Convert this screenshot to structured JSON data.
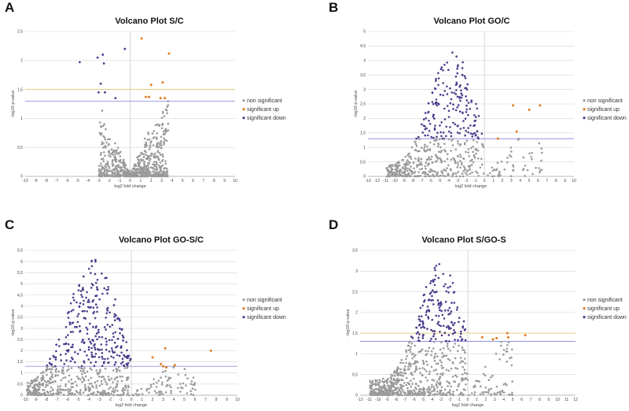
{
  "panel_letters": [
    "A",
    "B",
    "C",
    "D"
  ],
  "legend_colors": {
    "non_significant": "#9a9a9a",
    "significant_up": "#e07b20",
    "significant_down": "#4b3a8c"
  },
  "chart_data": [
    {
      "type": "scatter",
      "letter": "A",
      "title": "Volcano Plot S/C",
      "xlabel": "log2 fold change",
      "ylabel": "-log10 p-value",
      "xlim": [
        -10,
        10
      ],
      "ylim": [
        0,
        2.5
      ],
      "ystep": 0.5,
      "xticks": [
        "-10",
        "-9",
        "-8",
        "-7",
        "-6",
        "-5",
        "-4",
        "-3",
        "-2",
        "-1",
        "0",
        "1",
        "2",
        "3",
        "4",
        "5",
        "6",
        "7",
        "8",
        "9",
        "10"
      ],
      "yticks": [
        "0",
        "0,5",
        "1",
        "1,5",
        "2",
        "2,5"
      ],
      "threshold_lines": [
        1.3,
        1.5
      ],
      "legend": [
        "non significant",
        "significant up",
        "significant down"
      ],
      "legend_position": "right",
      "points_up": [
        [
          1.1,
          2.38
        ],
        [
          3.7,
          2.12
        ],
        [
          2.0,
          1.58
        ],
        [
          3.1,
          1.62
        ],
        [
          1.5,
          1.37
        ],
        [
          2.9,
          1.35
        ],
        [
          3.3,
          1.35
        ],
        [
          1.8,
          1.37
        ]
      ],
      "points_down": [
        [
          -4.8,
          1.97
        ],
        [
          -3.1,
          2.05
        ],
        [
          -2.5,
          1.95
        ],
        [
          -2.8,
          1.6
        ],
        [
          -2.4,
          1.45
        ],
        [
          -3.0,
          1.45
        ],
        [
          -1.4,
          1.35
        ],
        [
          -0.5,
          2.2
        ],
        [
          -2.6,
          2.1
        ]
      ],
      "ns_cloud": {
        "ns_count": 700,
        "spread": 2.2,
        "peak": 1.3,
        "xrange": [
          -5,
          6
        ]
      }
    },
    {
      "type": "scatter",
      "letter": "B",
      "title": "Volcano Plot GO/C",
      "xlabel": "log2 fold change",
      "ylabel": "-log10 p-value",
      "xlim": [
        -13,
        10
      ],
      "ylim": [
        0,
        5
      ],
      "ystep": 0.5,
      "xticks": [
        "-13",
        "-12",
        "-11",
        "-10",
        "-9",
        "-8",
        "-7",
        "-6",
        "-5",
        "-4",
        "-3",
        "-2",
        "-1",
        "0",
        "1",
        "2",
        "3",
        "4",
        "5",
        "6",
        "7",
        "8",
        "9",
        "10"
      ],
      "yticks": [
        "0",
        "0,5",
        "1",
        "1,5",
        "2",
        "2,5",
        "3",
        "3,5",
        "4",
        "4,5",
        "5"
      ],
      "threshold_lines": [
        1.3
      ],
      "legend": [
        "non significant",
        "significant up",
        "significant down"
      ],
      "legend_position": "right",
      "points_up": [
        [
          3.2,
          2.45
        ],
        [
          5.0,
          2.3
        ],
        [
          6.2,
          2.45
        ],
        [
          3.6,
          1.55
        ],
        [
          1.5,
          1.3
        ]
      ],
      "points_down": [],
      "ns_cloud": {
        "ns_count": 600,
        "spread": 4.4,
        "peak": -3.5,
        "xrange": [
          -11,
          8
        ]
      }
    },
    {
      "type": "scatter",
      "letter": "C",
      "title": "Volcano Plot GO-S/C",
      "xlabel": "log2 fold change",
      "ylabel": "-log10 p-value",
      "xlim": [
        -10,
        10
      ],
      "ylim": [
        0,
        6.5
      ],
      "ystep": 0.5,
      "xticks": [
        "-10",
        "-9",
        "-8",
        "-7",
        "-6",
        "-5",
        "-4",
        "-3",
        "-2",
        "-1",
        "0",
        "1",
        "2",
        "3",
        "4",
        "5",
        "6",
        "7",
        "8",
        "9",
        "10"
      ],
      "yticks": [
        "0",
        "0,5",
        "1",
        "1,5",
        "2",
        "2,5",
        "3",
        "3,5",
        "4",
        "4,5",
        "5",
        "5,5",
        "6",
        "6,5"
      ],
      "threshold_lines": [
        1.3
      ],
      "legend": [
        "non significant",
        "significant up",
        "significant down"
      ],
      "legend_position": "right",
      "points_up": [
        [
          3.2,
          2.1
        ],
        [
          7.5,
          2.0
        ],
        [
          2.0,
          1.7
        ],
        [
          2.8,
          1.4
        ],
        [
          3.0,
          1.3
        ],
        [
          4.1,
          1.35
        ],
        [
          3.3,
          1.25
        ]
      ],
      "points_down": [],
      "ns_cloud": {
        "ns_count": 750,
        "spread": 6.0,
        "peak": -3.5,
        "xrange": [
          -10,
          7
        ]
      }
    },
    {
      "type": "scatter",
      "letter": "D",
      "title": "Volcano Plot S/GO-S",
      "xlabel": "log2 fold change",
      "ylabel": "-log10 p-value",
      "xlim": [
        -12,
        12
      ],
      "ylim": [
        0,
        3.5
      ],
      "ystep": 0.5,
      "xticks": [
        "-12",
        "-11",
        "-10",
        "-9",
        "-8",
        "-7",
        "-6",
        "-5",
        "-4",
        "-3",
        "-2",
        "-1",
        "0",
        "1",
        "2",
        "3",
        "4",
        "5",
        "6",
        "7",
        "8",
        "9",
        "10",
        "11",
        "12"
      ],
      "yticks": [
        "0",
        "0,5",
        "1",
        "1,5",
        "2",
        "2,5",
        "3",
        "3,5"
      ],
      "threshold_lines": [
        1.3,
        1.5
      ],
      "legend": [
        "non significant",
        "significant up",
        "significant down"
      ],
      "legend_position": "right",
      "points_up": [
        [
          4.4,
          1.5
        ],
        [
          4.5,
          1.4
        ],
        [
          6.4,
          1.45
        ],
        [
          2.8,
          1.35
        ],
        [
          3.2,
          1.38
        ],
        [
          1.6,
          1.4
        ]
      ],
      "points_down": [],
      "ns_cloud": {
        "ns_count": 800,
        "spread": 3.1,
        "peak": -3.0,
        "xrange": [
          -11,
          5
        ]
      }
    }
  ]
}
